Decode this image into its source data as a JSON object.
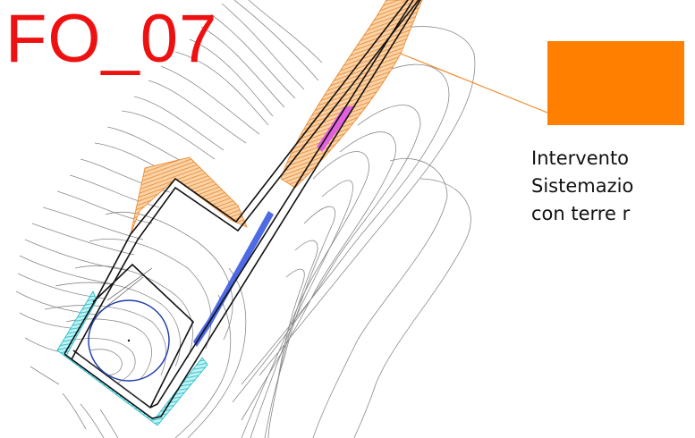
{
  "sheet": {
    "code": "FO_07"
  },
  "legend": {
    "swatch_color": "#ff8000",
    "lines": [
      "Intervento",
      "Sistemazio",
      "con terre r"
    ]
  },
  "colors": {
    "code_text": "#ee1111",
    "leader": "#f08a2a",
    "fill_orange": "#f5a050",
    "fill_cyan": "#5ad8d8",
    "fill_magenta": "#e060e0",
    "fill_blue": "#3050e0",
    "circle": "#1a3aa8",
    "contour": "#8a8a8a",
    "outline": "#111111"
  }
}
